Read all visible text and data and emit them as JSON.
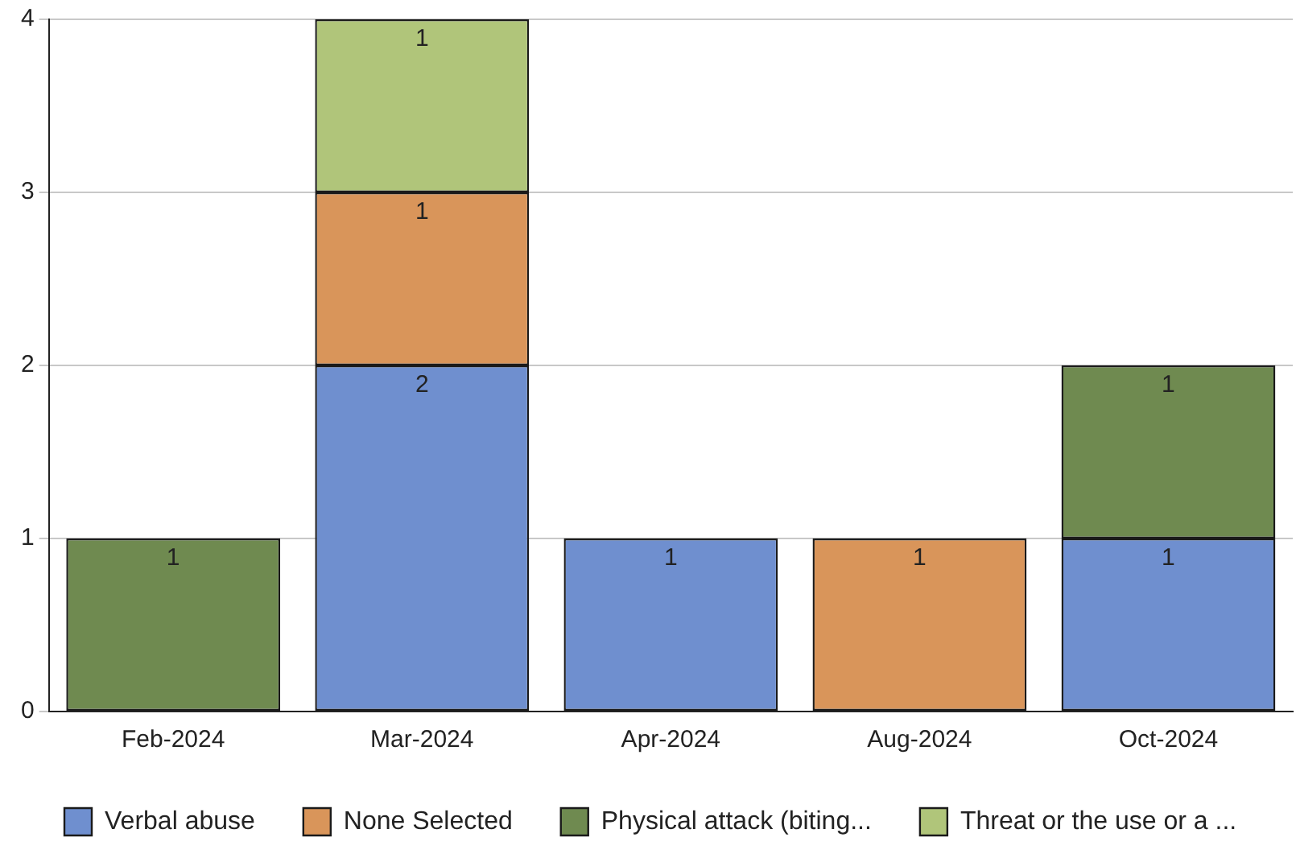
{
  "chart_data": {
    "type": "bar",
    "stacked": true,
    "categories": [
      "Feb-2024",
      "Mar-2024",
      "Apr-2024",
      "Aug-2024",
      "Oct-2024"
    ],
    "series": [
      {
        "name": "Verbal abuse",
        "color": "#6f8fcf",
        "values": [
          null,
          2,
          1,
          null,
          1
        ]
      },
      {
        "name": "None Selected",
        "color": "#d9955a",
        "values": [
          null,
          1,
          null,
          1,
          null
        ]
      },
      {
        "name": "Physical attack (biting...",
        "color": "#6f8a50",
        "values": [
          1,
          null,
          null,
          null,
          1
        ]
      },
      {
        "name": "Threat or the use or a ...",
        "color": "#b0c57a",
        "values": [
          null,
          1,
          null,
          null,
          null
        ]
      }
    ],
    "ylim": [
      0,
      4
    ],
    "yticks": [
      0,
      1,
      2,
      3,
      4
    ],
    "grid": "y",
    "legend": "bottom",
    "data_labels": true
  }
}
